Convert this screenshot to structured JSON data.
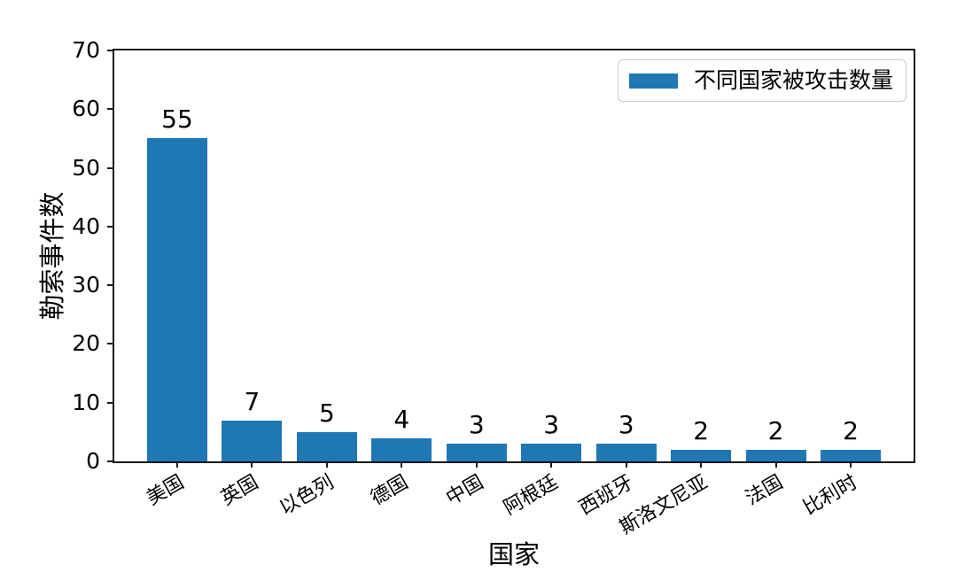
{
  "chart_data": {
    "type": "bar",
    "categories": [
      "美国",
      "英国",
      "以色列",
      "德国",
      "中国",
      "阿根廷",
      "西班牙",
      "斯洛文尼亚",
      "法国",
      "比利时"
    ],
    "values": [
      55,
      7,
      5,
      4,
      3,
      3,
      3,
      2,
      2,
      2
    ],
    "title": "",
    "xlabel": "国家",
    "ylabel": "勒索事件数",
    "ylim": [
      0,
      70
    ],
    "yticks": [
      0,
      10,
      20,
      30,
      40,
      50,
      60,
      70
    ],
    "bar_value_labels": [
      "55",
      "7",
      "5",
      "4",
      "3",
      "3",
      "3",
      "2",
      "2",
      "2"
    ],
    "grid": false,
    "legend": {
      "label": "不同国家被攻击数量",
      "position": "upper right"
    },
    "colors": {
      "bar": "#1f77b4",
      "spine": "#1a1a1a",
      "text": "#000000",
      "legend_border": "#cccccc",
      "background": "#ffffff"
    }
  }
}
